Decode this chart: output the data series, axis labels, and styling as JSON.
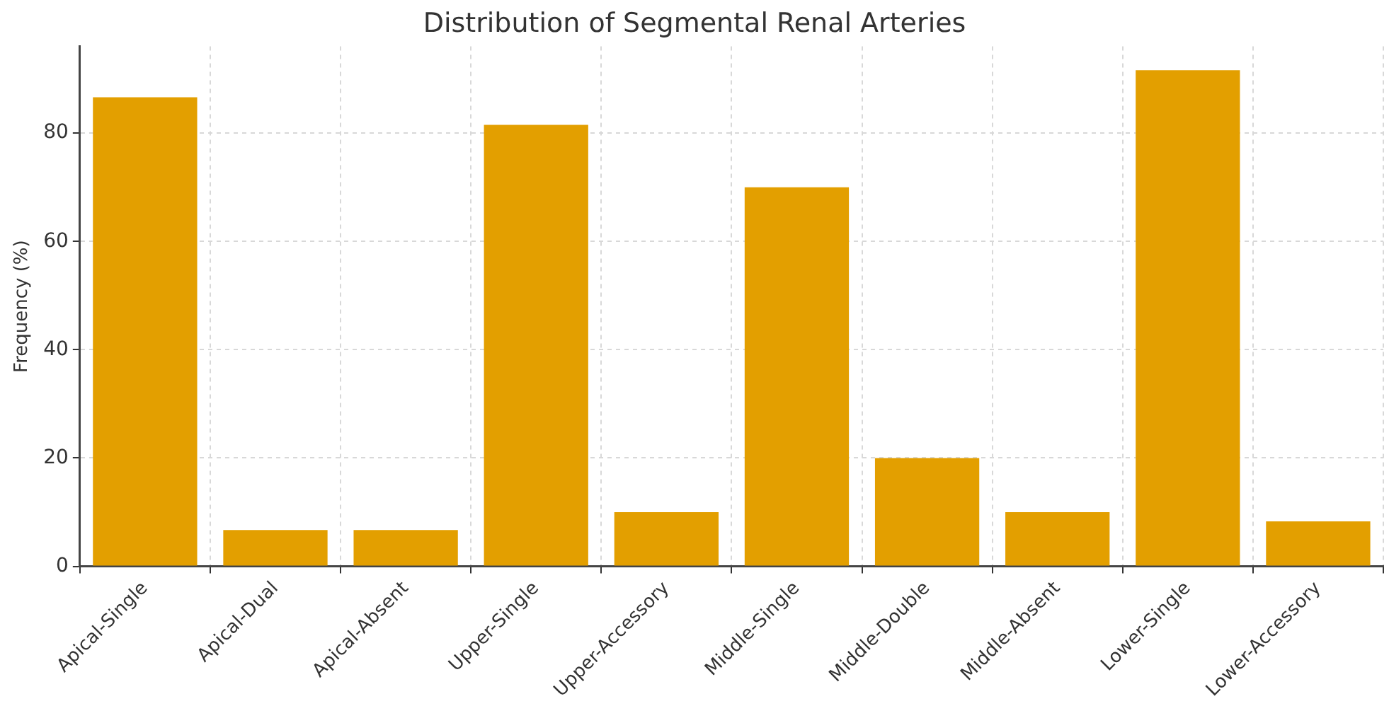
{
  "chart_data": {
    "type": "bar",
    "title": "Distribution of Segmental Renal Arteries",
    "ylabel": "Frequency (%)",
    "categories": [
      "Apical-Single",
      "Apical-Dual",
      "Apical-Absent",
      "Upper-Single",
      "Upper-Accessory",
      "Middle-Single",
      "Middle-Double",
      "Middle-Absent",
      "Lower-Single",
      "Lower-Accessory"
    ],
    "values": [
      86.6,
      6.7,
      6.7,
      81.5,
      10,
      70,
      20,
      10,
      91.6,
      8.3
    ],
    "color": "#e39f00",
    "ylim": [
      0,
      96
    ],
    "yticks": [
      0,
      20,
      40,
      60,
      80
    ],
    "grid": true,
    "legend": false
  }
}
